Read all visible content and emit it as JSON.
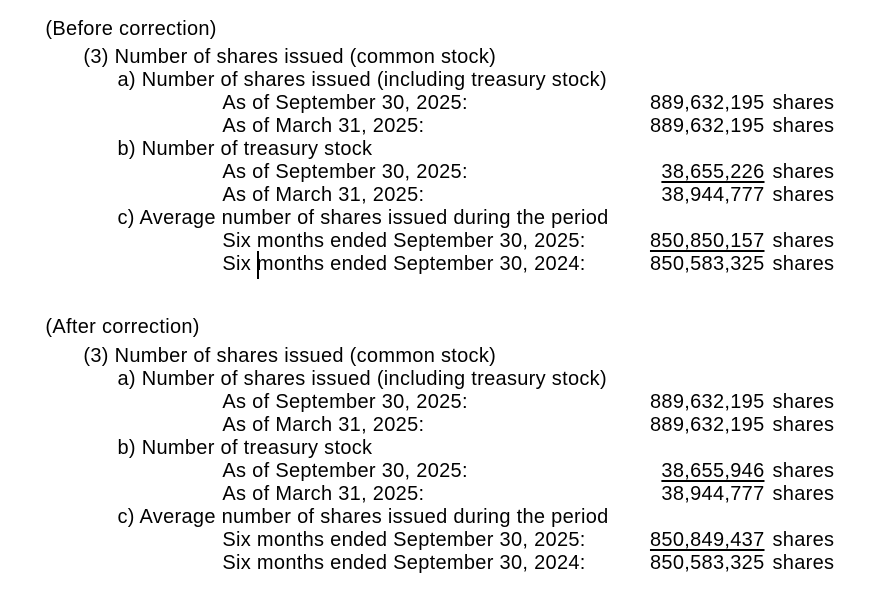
{
  "page": {
    "background_color": "#ffffff",
    "text_color": "#000000"
  },
  "document": {
    "sections": [
      {
        "id": "before-correction",
        "header": {
          "open_paren": "(",
          "title": "Before correction",
          "close_paren": ")"
        },
        "lines": [
          {
            "indent": 1,
            "text": "(3) Number of shares issued (common stock)"
          },
          {
            "indent": 2,
            "text": "a) Number of shares issued (including treasury stock)"
          },
          {
            "indent": 3,
            "label": "As of September 30, 2025:",
            "value": "889,632,195",
            "unit": "shares",
            "underline": false
          },
          {
            "indent": 3,
            "label": "As of March 31, 2025:",
            "value": "889,632,195",
            "unit": "shares",
            "underline": false
          },
          {
            "indent": 2,
            "text": "b) Number of treasury stock"
          },
          {
            "indent": 3,
            "label": "As of September 30, 2025:",
            "value": "38,655,226",
            "unit": "shares",
            "underline": true
          },
          {
            "indent": 3,
            "label": "As of March 31, 2025:",
            "value": "38,944,777",
            "unit": "shares",
            "underline": false
          },
          {
            "indent": 2,
            "text": "c) Average number of shares issued during the period"
          },
          {
            "indent": 3,
            "label": "Six months ended September 30, 2025:",
            "value": "850,850,157",
            "unit": "shares",
            "underline": true
          },
          {
            "indent": 3,
            "label": "Six months ended September 30, 2024:",
            "value": "850,583,325",
            "unit": "shares",
            "underline": false
          }
        ]
      },
      {
        "id": "after-correction",
        "header": {
          "open_paren": "(",
          "title": "After correction",
          "close_paren": ")"
        },
        "lines": [
          {
            "indent": 1,
            "text": "(3) Number of shares issued (common stock)"
          },
          {
            "indent": 2,
            "text": "a) Number of shares issued (including treasury stock)"
          },
          {
            "indent": 3,
            "label": "As of September 30, 2025:",
            "value": "889,632,195",
            "unit": "shares",
            "underline": false
          },
          {
            "indent": 3,
            "label": "As of March 31, 2025:",
            "value": "889,632,195",
            "unit": "shares",
            "underline": false
          },
          {
            "indent": 2,
            "text": "b) Number of treasury stock"
          },
          {
            "indent": 3,
            "label": "As of September 30, 2025:",
            "value": "38,655,946",
            "unit": "shares",
            "underline": true
          },
          {
            "indent": 3,
            "label": "As of March 31, 2025:",
            "value": "38,944,777",
            "unit": "shares",
            "underline": false
          },
          {
            "indent": 2,
            "text": "c) Average number of shares issued during the period"
          },
          {
            "indent": 3,
            "label": "Six months ended September 30, 2025:",
            "value": "850,849,437",
            "unit": "shares",
            "underline": true
          },
          {
            "indent": 3,
            "label": "Six months ended September 30, 2024:",
            "value": "850,583,325",
            "unit": "shares",
            "underline": false
          }
        ]
      }
    ],
    "text_cursor": {
      "visible": true,
      "located_before_word": "months",
      "on_line": "Six months ended September 30, 2024:",
      "in_section": "before-correction"
    }
  }
}
